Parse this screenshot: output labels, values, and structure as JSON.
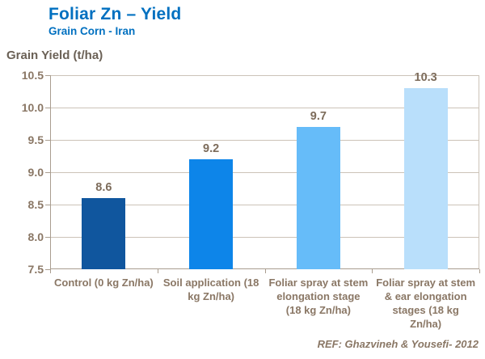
{
  "header": {
    "title": "Foliar Zn – Yield",
    "subtitle": "Grain Corn - Iran"
  },
  "footer": {
    "reference": "REF: Ghazvineh & Yousefi- 2012"
  },
  "colors": {
    "title_blue": "#0070C0",
    "axis_title_text": "#6B6156",
    "tick_text": "#8A7765",
    "value_text": "#7D6C5B",
    "grid_line": "#CCC3B8",
    "axis_line": "#A99D8F",
    "bar_colors": [
      "#10569E",
      "#0D85E9",
      "#66BCF9",
      "#B9DFFB"
    ]
  },
  "chart_data": {
    "type": "bar",
    "title": "Foliar Zn – Yield",
    "subtitle": "Grain Corn - Iran",
    "ylabel": "Grain Yield (t/ha)",
    "xlabel": "",
    "categories": [
      "Control (0 kg Zn/ha)",
      "Soil application (18 kg Zn/ha)",
      "Foliar spray at stem elongation stage (18 kg Zn/ha)",
      "Foliar spray at stem & ear elongation stages (18 kg Zn/ha)"
    ],
    "values": [
      8.6,
      9.2,
      9.7,
      10.3
    ],
    "value_labels": [
      "8.6",
      "9.2",
      "9.7",
      "10.3"
    ],
    "ylim": [
      7.5,
      10.5
    ],
    "ytick_step": 0.5,
    "ytick_labels": [
      "7.5",
      "8.0",
      "8.5",
      "9.0",
      "9.5",
      "10.0",
      "10.5"
    ],
    "grid": true,
    "legend": "none"
  }
}
